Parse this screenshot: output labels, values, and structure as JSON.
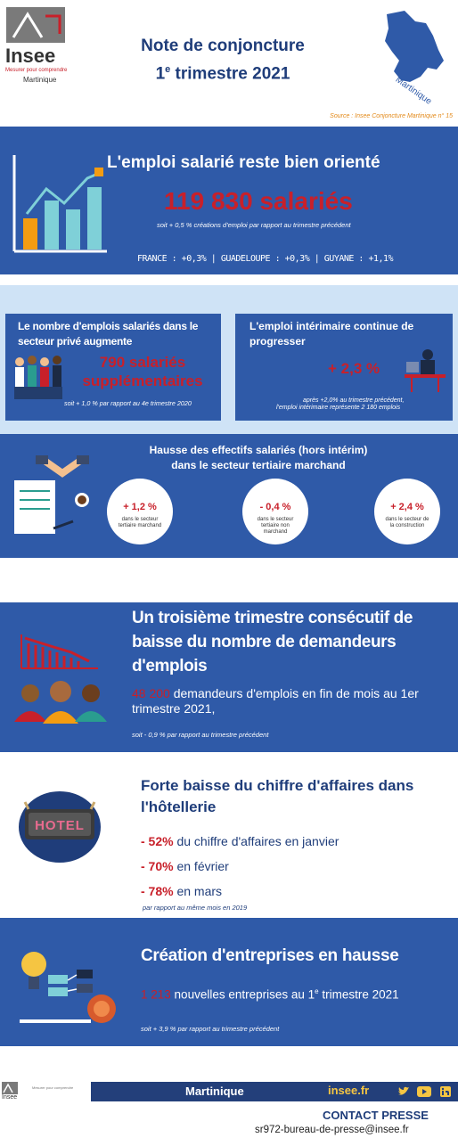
{
  "header": {
    "logo": {
      "brand": "Insee",
      "tagline": "Mesurer pour comprendre",
      "region": "Martinique"
    },
    "title_line1": "Note de conjoncture",
    "title_line2_num": "1",
    "title_line2_sup": "e",
    "title_line2_rest": " trimestre 2021",
    "map_label": "Martinique",
    "source": "Source : Insee Conjoncture Martinique n° 15"
  },
  "employment": {
    "title": "L'emploi salarié reste bien orienté",
    "headline": "119 830 salariés",
    "subline": "soit  + 0,5 % créations d'emploi par rapport au trimestre précédent",
    "comparison": "FRANCE : +0,3%  |  GUADELOUPE : +0,3%  |  GUYANE : +1,1%",
    "chart_icon": "growth-bar-chart-icon",
    "chart_bars": [
      0.35,
      0.55,
      0.45,
      0.7
    ]
  },
  "private_sector": {
    "title": "Le nombre d'emplois salariés dans le secteur privé augmente",
    "headline": "790 salariés supplémentaires",
    "note": "soit + 1,0 % par rapport au 4e trimestre 2020",
    "icon": "workers-group-icon"
  },
  "temp_work": {
    "title": "L'emploi intérimaire continue de progresser",
    "headline": "+ 2,3 %",
    "note_line1": "après +2,0% au trimestre précédent,",
    "note_line2": "l'emploi intérimaire représente 2 180 emplois",
    "icon": "office-worker-icon"
  },
  "tertiary": {
    "title_line1": "Hausse des effectifs salariés (hors intérim)",
    "title_line2": "dans le secteur tertiaire marchand",
    "icon": "handshake-contract-icon",
    "stats": [
      {
        "value": "+ 1,2 %",
        "label": "dans le secteur tertiaire marchand"
      },
      {
        "value": "- 0,4 %",
        "label": "dans le secteur tertiaire non marchand"
      },
      {
        "value": "+ 2,4 %",
        "label": "dans le secteur de la construction"
      }
    ]
  },
  "jobseekers": {
    "title": "Un troisième trimestre consécutif de baisse du nombre de demandeurs d'emplois",
    "headline_num": "48 200",
    "headline_rest": " demandeurs d'emplois en fin de mois au 1er trimestre 2021,",
    "note": "soit - 0,9 % par rapport au trimestre précédent",
    "icon": "declining-chart-people-icon"
  },
  "hotel": {
    "title": "Forte baisse du chiffre d'affaires dans l'hôtellerie",
    "sign_text": "HOTEL",
    "rows": [
      {
        "value": "- 52%",
        "text": " du chiffre d'affaires en janvier"
      },
      {
        "value": "- 70%",
        "text": " en février"
      },
      {
        "value": "- 78%",
        "text": " en mars"
      }
    ],
    "note": "par rapport au même mois en 2019",
    "icon": "hotel-sign-icon"
  },
  "business": {
    "title": "Création d'entreprises en hausse",
    "headline_num": "1 213",
    "headline_rest": " nouvelles entreprises au 1",
    "headline_sup": "e",
    "headline_tail": " trimestre 2021",
    "note": "soit + 3,9 % par rapport au trimestre précédent",
    "icon": "lightbulb-flowchart-icon"
  },
  "footer": {
    "logo_brand": "Insee",
    "logo_tagline": "Mesurer pour comprendre",
    "region": "Martinique",
    "site": "insee.fr",
    "social": [
      "twitter-icon",
      "youtube-icon",
      "linkedin-icon"
    ],
    "contact_title": "CONTACT PRESSE",
    "contact_email": "sr972-bureau-de-presse@insee.fr"
  },
  "colors": {
    "blue": "#2f5aa8",
    "light_blue": "#cfe3f6",
    "red": "#c8202a",
    "navy": "#1f3d7a",
    "orange": "#f39c12"
  }
}
